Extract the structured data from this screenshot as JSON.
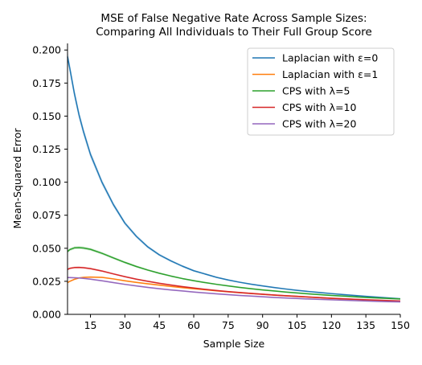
{
  "chart_data": {
    "type": "line",
    "title_lines": [
      "MSE of False Negative Rate Across Sample Sizes:",
      "Comparing All Individuals to Their Full Group Score"
    ],
    "xlabel": "Sample Size",
    "ylabel": "Mean-Squared Error",
    "xlim": [
      5,
      150
    ],
    "ylim": [
      0,
      0.205
    ],
    "x_ticks": [
      15,
      30,
      45,
      60,
      75,
      90,
      105,
      120,
      135,
      150
    ],
    "x_tick_labels": [
      "15",
      "30",
      "45",
      "60",
      "75",
      "90",
      "105",
      "120",
      "135",
      "150"
    ],
    "y_ticks": [
      0.0,
      0.025,
      0.05,
      0.075,
      0.1,
      0.125,
      0.15,
      0.175,
      0.2
    ],
    "y_tick_labels": [
      "0.000",
      "0.025",
      "0.050",
      "0.075",
      "0.100",
      "0.125",
      "0.150",
      "0.175",
      "0.200"
    ],
    "grid": false,
    "legend_position": "top-right",
    "x": [
      5,
      6,
      8,
      10,
      12,
      15,
      20,
      25,
      30,
      35,
      40,
      45,
      50,
      55,
      60,
      65,
      70,
      75,
      80,
      85,
      90,
      95,
      100,
      105,
      110,
      115,
      120,
      125,
      130,
      135,
      140,
      145,
      150
    ],
    "series": [
      {
        "name": "Laplacian with ε=0",
        "color": "#1f77b4",
        "values": [
          0.195,
          0.186,
          0.167,
          0.151,
          0.138,
          0.121,
          0.1,
          0.083,
          0.069,
          0.059,
          0.051,
          0.045,
          0.0405,
          0.0365,
          0.033,
          0.0305,
          0.028,
          0.026,
          0.0243,
          0.0228,
          0.0215,
          0.0203,
          0.0192,
          0.0182,
          0.0173,
          0.0165,
          0.0157,
          0.015,
          0.0143,
          0.0136,
          0.013,
          0.0124,
          0.0118
        ]
      },
      {
        "name": "Laplacian with ε=1",
        "color": "#ff7f0e",
        "values": [
          0.024,
          0.025,
          0.0265,
          0.0275,
          0.028,
          0.0282,
          0.028,
          0.0268,
          0.0254,
          0.0242,
          0.0231,
          0.0221,
          0.0211,
          0.0202,
          0.0194,
          0.0186,
          0.0178,
          0.0171,
          0.0164,
          0.0158,
          0.0152,
          0.0146,
          0.0141,
          0.0136,
          0.0131,
          0.0126,
          0.0121,
          0.0117,
          0.0113,
          0.0109,
          0.0106,
          0.0102,
          0.0099
        ]
      },
      {
        "name": "CPS with λ=5",
        "color": "#2ca02c",
        "values": [
          0.0475,
          0.049,
          0.0503,
          0.0505,
          0.0502,
          0.0492,
          0.0462,
          0.0427,
          0.0393,
          0.0362,
          0.0335,
          0.0311,
          0.029,
          0.0271,
          0.0255,
          0.024,
          0.0227,
          0.0215,
          0.0204,
          0.0194,
          0.0185,
          0.0177,
          0.0169,
          0.0162,
          0.0155,
          0.0149,
          0.0143,
          0.0138,
          0.0133,
          0.0128,
          0.0124,
          0.012,
          0.0116
        ]
      },
      {
        "name": "CPS with λ=10",
        "color": "#d62728",
        "values": [
          0.034,
          0.0348,
          0.0354,
          0.0355,
          0.0353,
          0.0346,
          0.0328,
          0.0306,
          0.0285,
          0.0266,
          0.025,
          0.0235,
          0.0222,
          0.021,
          0.0199,
          0.0189,
          0.018,
          0.0172,
          0.0165,
          0.0158,
          0.0152,
          0.0146,
          0.0141,
          0.0136,
          0.0131,
          0.0126,
          0.0122,
          0.0118,
          0.0114,
          0.011,
          0.0107,
          0.0104,
          0.0101
        ]
      },
      {
        "name": "CPS with λ=20",
        "color": "#9467bd",
        "values": [
          0.0278,
          0.0278,
          0.0277,
          0.0275,
          0.0272,
          0.0266,
          0.0254,
          0.024,
          0.0227,
          0.0215,
          0.0204,
          0.0194,
          0.0185,
          0.0177,
          0.0169,
          0.0162,
          0.0155,
          0.0149,
          0.0143,
          0.0138,
          0.0133,
          0.0128,
          0.0124,
          0.012,
          0.0116,
          0.0113,
          0.011,
          0.0107,
          0.0104,
          0.0101,
          0.0098,
          0.0096,
          0.0094
        ]
      }
    ]
  }
}
